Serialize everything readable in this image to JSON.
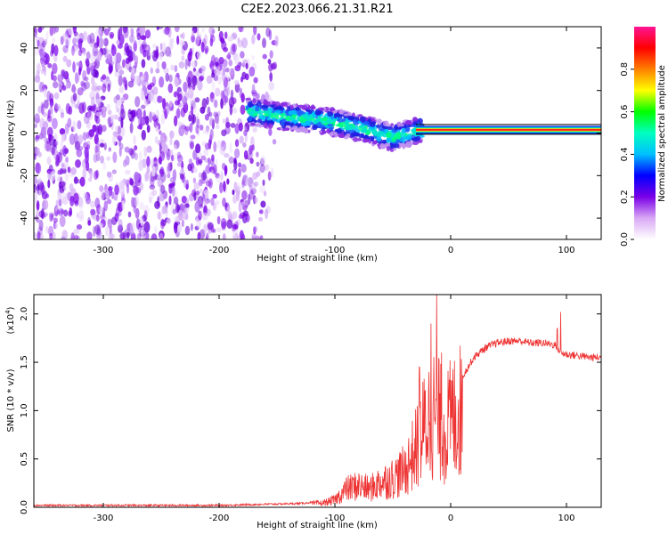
{
  "title": "C2E2.2023.066.21.31.R21",
  "chart_data": [
    {
      "type": "heatmap",
      "xlabel": "Height of straight line (km)",
      "ylabel": "Frequency (Hz)",
      "xlim": [
        -360,
        130
      ],
      "ylim": [
        -50,
        50
      ],
      "xticks": [
        -300,
        -200,
        -100,
        0,
        100
      ],
      "xtick_labels": [
        "-300",
        "-200",
        "-100",
        "0",
        "100"
      ],
      "yticks": [
        -40,
        -20,
        0,
        20,
        40
      ],
      "ytick_labels": [
        "-40",
        "-20",
        "0",
        "20",
        "40"
      ],
      "colorbar": {
        "label": "Normalized spectral amplitude",
        "range": [
          0,
          1
        ],
        "ticks": [
          0,
          0.2,
          0.4,
          0.6,
          0.8
        ],
        "tick_labels": [
          "0.0",
          "0.2",
          "0.4",
          "0.6",
          "0.8"
        ],
        "colors": [
          "#ffffff",
          "#d9a8f5",
          "#7a00e6",
          "#0000ff",
          "#00bfff",
          "#00ffc0",
          "#00ff00",
          "#ffff00",
          "#ff8000",
          "#ff0000",
          "#ff1493"
        ]
      },
      "regions": [
        {
          "description": "broadband noise",
          "x_range": [
            -360,
            -150
          ],
          "freq_range": [
            -50,
            50
          ],
          "amplitude": 0.1
        },
        {
          "description": "scattered signal band",
          "x_range": [
            -175,
            -25
          ],
          "freq_center": [
            8,
            0
          ],
          "amplitude": 0.45
        },
        {
          "description": "narrow carrier line",
          "x_range": [
            -30,
            130
          ],
          "freq_center": 1.5,
          "amplitude": 0.9
        }
      ],
      "carrier_track": {
        "x": [
          -175,
          -150,
          -125,
          -100,
          -75,
          -50,
          -30,
          -10,
          0,
          50,
          100,
          130
        ],
        "freq": [
          10,
          8,
          7,
          5,
          2,
          -2,
          1,
          2,
          1.5,
          1.5,
          1.5,
          1.5
        ]
      }
    },
    {
      "type": "line",
      "xlabel": "Height of straight line (km)",
      "ylabel": "SNR (10 * v/v)",
      "y_scale_label": "(x10",
      "y_scale_exponent": "4",
      "y_scale_suffix": ")",
      "xlim": [
        -360,
        130
      ],
      "ylim": [
        0,
        2.2
      ],
      "xticks": [
        -300,
        -200,
        -100,
        0,
        100
      ],
      "xtick_labels": [
        "-300",
        "-200",
        "-100",
        "0",
        "100"
      ],
      "yticks": [
        0,
        0.5,
        1.0,
        1.5,
        2.0
      ],
      "ytick_labels": [
        "0.0",
        "0.5",
        "1.0",
        "1.5",
        "2.0"
      ],
      "color": "#ee3333",
      "envelope": {
        "x": [
          -360,
          -200,
          -130,
          -110,
          -100,
          -90,
          -80,
          -70,
          -60,
          -50,
          -40,
          -30,
          -25,
          -20,
          -15,
          -10,
          -5,
          0,
          10,
          20,
          30,
          40,
          50,
          60,
          70,
          80,
          90,
          95,
          100,
          110,
          120,
          130
        ],
        "y": [
          0.02,
          0.02,
          0.04,
          0.06,
          0.1,
          0.25,
          0.3,
          0.25,
          0.35,
          0.4,
          0.5,
          0.8,
          1.0,
          1.2,
          1.3,
          1.2,
          1.05,
          1.2,
          1.35,
          1.55,
          1.65,
          1.7,
          1.72,
          1.72,
          1.7,
          1.7,
          1.68,
          1.6,
          1.58,
          1.57,
          1.55,
          1.55
        ]
      },
      "spikes": [
        {
          "x": -12,
          "y": 2.2
        },
        {
          "x": -17,
          "y": 1.9
        },
        {
          "x": -8,
          "y": 1.6
        },
        {
          "x": -27,
          "y": 1.45
        },
        {
          "x": 95,
          "y": 2.02
        },
        {
          "x": 92,
          "y": 1.85
        }
      ]
    }
  ]
}
